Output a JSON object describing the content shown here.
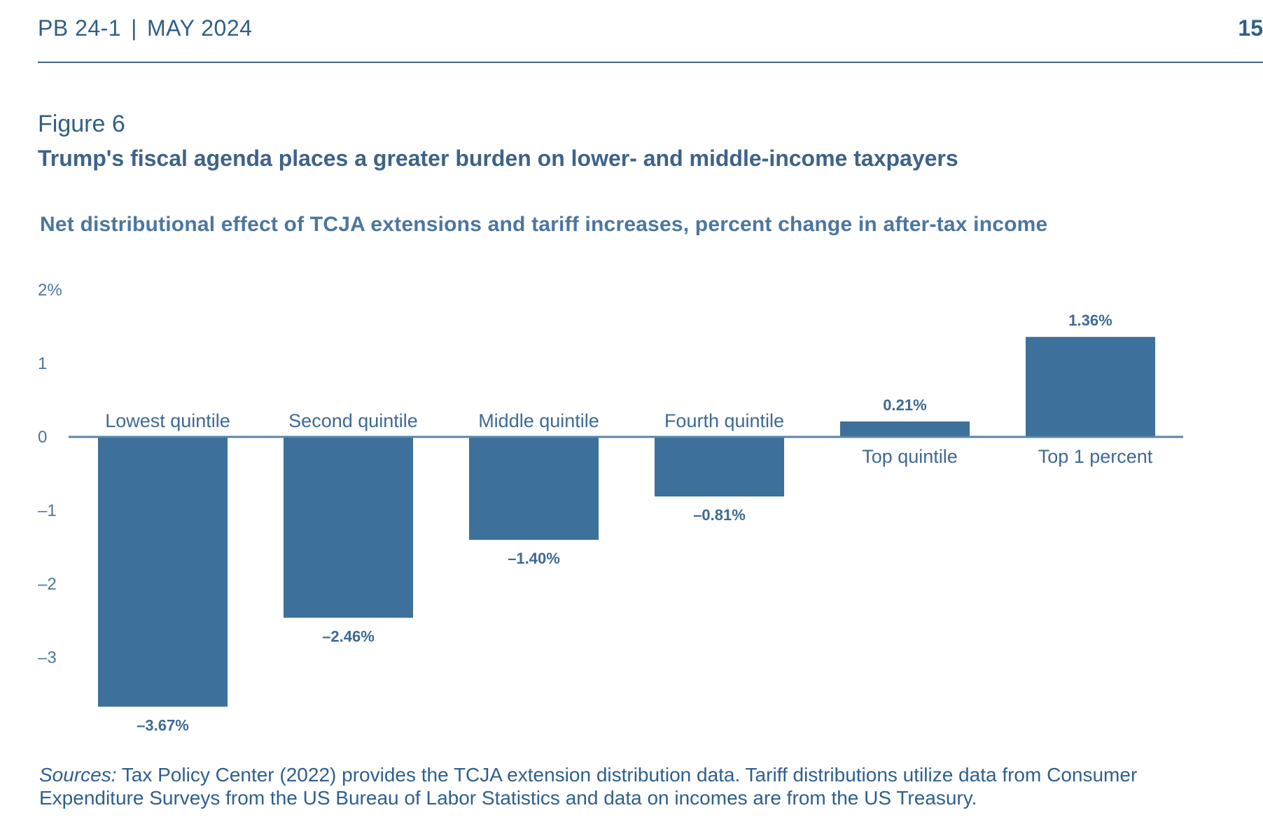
{
  "header": {
    "doc_id": "PB 24-1",
    "separator": "|",
    "date": "MAY 2024",
    "page": "15"
  },
  "figure": {
    "label": "Figure 6",
    "title": "Trump's fiscal agenda places a greater burden on lower- and middle-income taxpayers",
    "subtitle": "Net distributional effect of TCJA extensions and tariff increases, percent change in after-tax income"
  },
  "chart_data": {
    "type": "bar",
    "title": "Net distributional effect of TCJA extensions and tariff increases, percent change in after-tax income",
    "xlabel": "",
    "ylabel": "",
    "categories": [
      "Lowest quintile",
      "Second quintile",
      "Middle quintile",
      "Fourth quintile",
      "Top quintile",
      "Top 1 percent"
    ],
    "values": [
      -3.67,
      -2.46,
      -1.4,
      -0.81,
      0.21,
      1.36
    ],
    "value_labels": [
      "–3.67%",
      "–2.46%",
      "–1.40%",
      "–0.81%",
      "0.21%",
      "1.36%"
    ],
    "y_ticks": [
      2,
      1,
      0,
      -1,
      -2,
      -3
    ],
    "y_tick_labels": [
      "2%",
      "1",
      "0",
      "–1",
      "–2",
      "–3"
    ],
    "ylim": [
      -3.8,
      2
    ],
    "grid": false,
    "legend": "none",
    "bar_color": "#3d709b",
    "axis_color": "#5b84a8"
  },
  "sources": {
    "label": "Sources:",
    "text": " Tax Policy Center (2022) provides the TCJA extension distribution data. Tariff distributions utilize data from Consumer Expenditure Surveys from the US Bureau of Labor Statistics and data on incomes are from the US Treasury."
  }
}
